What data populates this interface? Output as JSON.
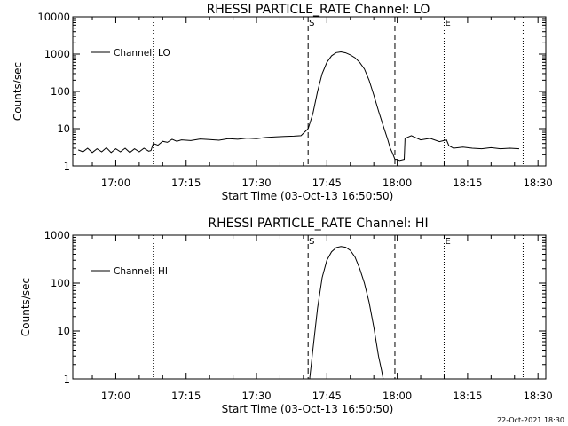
{
  "chart_data": [
    {
      "type": "line",
      "title": "RHESSI PARTICLE_RATE Channel: LO",
      "xlabel": "Start Time (03-Oct-13 16:50:50)",
      "ylabel": "Counts/sec",
      "y_scale": "log",
      "ylim": [
        1,
        10000
      ],
      "xlim": [
        "16:50:50",
        "18:31:40"
      ],
      "x_ticks": [
        "17:00",
        "17:15",
        "17:30",
        "17:45",
        "18:00",
        "18:15",
        "18:30"
      ],
      "y_ticks": [
        "1",
        "10",
        "100",
        "1000",
        "10000"
      ],
      "legend": {
        "placement": "top-left",
        "entries": [
          "Channel: LO"
        ]
      },
      "markers": [
        {
          "label": "",
          "time": "16:50:50",
          "style": "dotted"
        },
        {
          "label": "",
          "time": "17:08:00",
          "style": "dotted"
        },
        {
          "label": "S",
          "time": "17:41:00",
          "style": "dashed"
        },
        {
          "label": "",
          "time": "17:59:30",
          "style": "dashed"
        },
        {
          "label": "E",
          "time": "18:10:00",
          "style": "dotted"
        },
        {
          "label": "",
          "time": "18:26:50",
          "style": "dotted"
        }
      ],
      "series": [
        {
          "name": "Channel: LO",
          "x": [
            "16:52:00",
            "16:53:00",
            "16:54:00",
            "16:55:00",
            "16:56:00",
            "16:57:00",
            "16:58:00",
            "16:59:00",
            "17:00:00",
            "17:01:00",
            "17:02:00",
            "17:03:00",
            "17:04:00",
            "17:05:00",
            "17:06:00",
            "17:07:00",
            "17:07:30",
            "17:08:00",
            "17:09:00",
            "17:10:00",
            "17:11:00",
            "17:12:00",
            "17:13:00",
            "17:14:00",
            "17:16:00",
            "17:18:00",
            "17:20:00",
            "17:22:00",
            "17:24:00",
            "17:26:00",
            "17:28:00",
            "17:30:00",
            "17:32:00",
            "17:34:00",
            "17:36:00",
            "17:38:00",
            "17:39:30",
            "17:41:00",
            "17:42:00",
            "17:43:00",
            "17:44:00",
            "17:45:00",
            "17:46:00",
            "17:47:00",
            "17:48:00",
            "17:49:00",
            "17:50:00",
            "17:51:00",
            "17:52:00",
            "17:53:00",
            "17:54:00",
            "17:55:00",
            "17:56:00",
            "17:57:00",
            "17:58:00",
            "17:58:30",
            "17:59:00",
            "17:59:30",
            "18:00:00",
            "18:00:30",
            "18:01:30",
            "18:01:40",
            "18:03:00",
            "18:05:00",
            "18:07:00",
            "18:09:00",
            "18:10:30",
            "18:11:00",
            "18:12:00",
            "18:14:00",
            "18:16:00",
            "18:18:00",
            "18:20:00",
            "18:22:00",
            "18:24:00",
            "18:26:00"
          ],
          "y": [
            2.7,
            2.4,
            3.0,
            2.3,
            2.9,
            2.4,
            3.1,
            2.3,
            2.9,
            2.4,
            3.0,
            2.3,
            2.9,
            2.4,
            3.0,
            2.5,
            2.6,
            4.0,
            3.6,
            4.6,
            4.3,
            5.2,
            4.6,
            5.0,
            4.8,
            5.3,
            5.1,
            4.9,
            5.4,
            5.2,
            5.6,
            5.4,
            5.8,
            6.0,
            6.2,
            6.3,
            6.5,
            10,
            25,
            100,
            300,
            600,
            900,
            1100,
            1150,
            1080,
            950,
            800,
            600,
            400,
            200,
            80,
            30,
            12,
            5,
            3,
            2.2,
            1.5,
            1.5,
            1.4,
            1.5,
            5.5,
            6.5,
            5.0,
            5.5,
            4.5,
            5.0,
            3.5,
            3.0,
            3.2,
            3.0,
            2.9,
            3.1,
            2.9,
            3.0,
            2.9
          ]
        }
      ]
    },
    {
      "type": "line",
      "title": "RHESSI PARTICLE_RATE Channel: HI",
      "xlabel": "Start Time (03-Oct-13 16:50:50)",
      "ylabel": "Counts/sec",
      "y_scale": "log",
      "ylim": [
        1,
        1000
      ],
      "xlim": [
        "16:50:50",
        "18:31:40"
      ],
      "x_ticks": [
        "17:00",
        "17:15",
        "17:30",
        "17:45",
        "18:00",
        "18:15",
        "18:30"
      ],
      "y_ticks": [
        "1",
        "10",
        "100",
        "1000"
      ],
      "legend": {
        "placement": "top-left",
        "entries": [
          "Channel: HI"
        ]
      },
      "markers": [
        {
          "label": "",
          "time": "16:50:50",
          "style": "dotted"
        },
        {
          "label": "",
          "time": "17:08:00",
          "style": "dotted"
        },
        {
          "label": "S",
          "time": "17:41:00",
          "style": "dashed"
        },
        {
          "label": "",
          "time": "17:59:30",
          "style": "dashed"
        },
        {
          "label": "E",
          "time": "18:10:00",
          "style": "dotted"
        },
        {
          "label": "",
          "time": "18:26:50",
          "style": "dotted"
        }
      ],
      "series": [
        {
          "name": "Channel: HI",
          "x": [
            "17:41:20",
            "17:42:00",
            "17:43:00",
            "17:44:00",
            "17:45:00",
            "17:46:00",
            "17:47:00",
            "17:48:00",
            "17:49:00",
            "17:50:00",
            "17:51:00",
            "17:52:00",
            "17:53:00",
            "17:54:00",
            "17:55:00",
            "17:56:00",
            "17:56:40",
            "17:57:00"
          ],
          "y": [
            1,
            4,
            30,
            130,
            300,
            450,
            550,
            580,
            560,
            480,
            350,
            200,
            100,
            40,
            12,
            3,
            1.5,
            1
          ]
        }
      ]
    }
  ],
  "footer": {
    "timestamp": "22-Oct-2021 18:30"
  }
}
